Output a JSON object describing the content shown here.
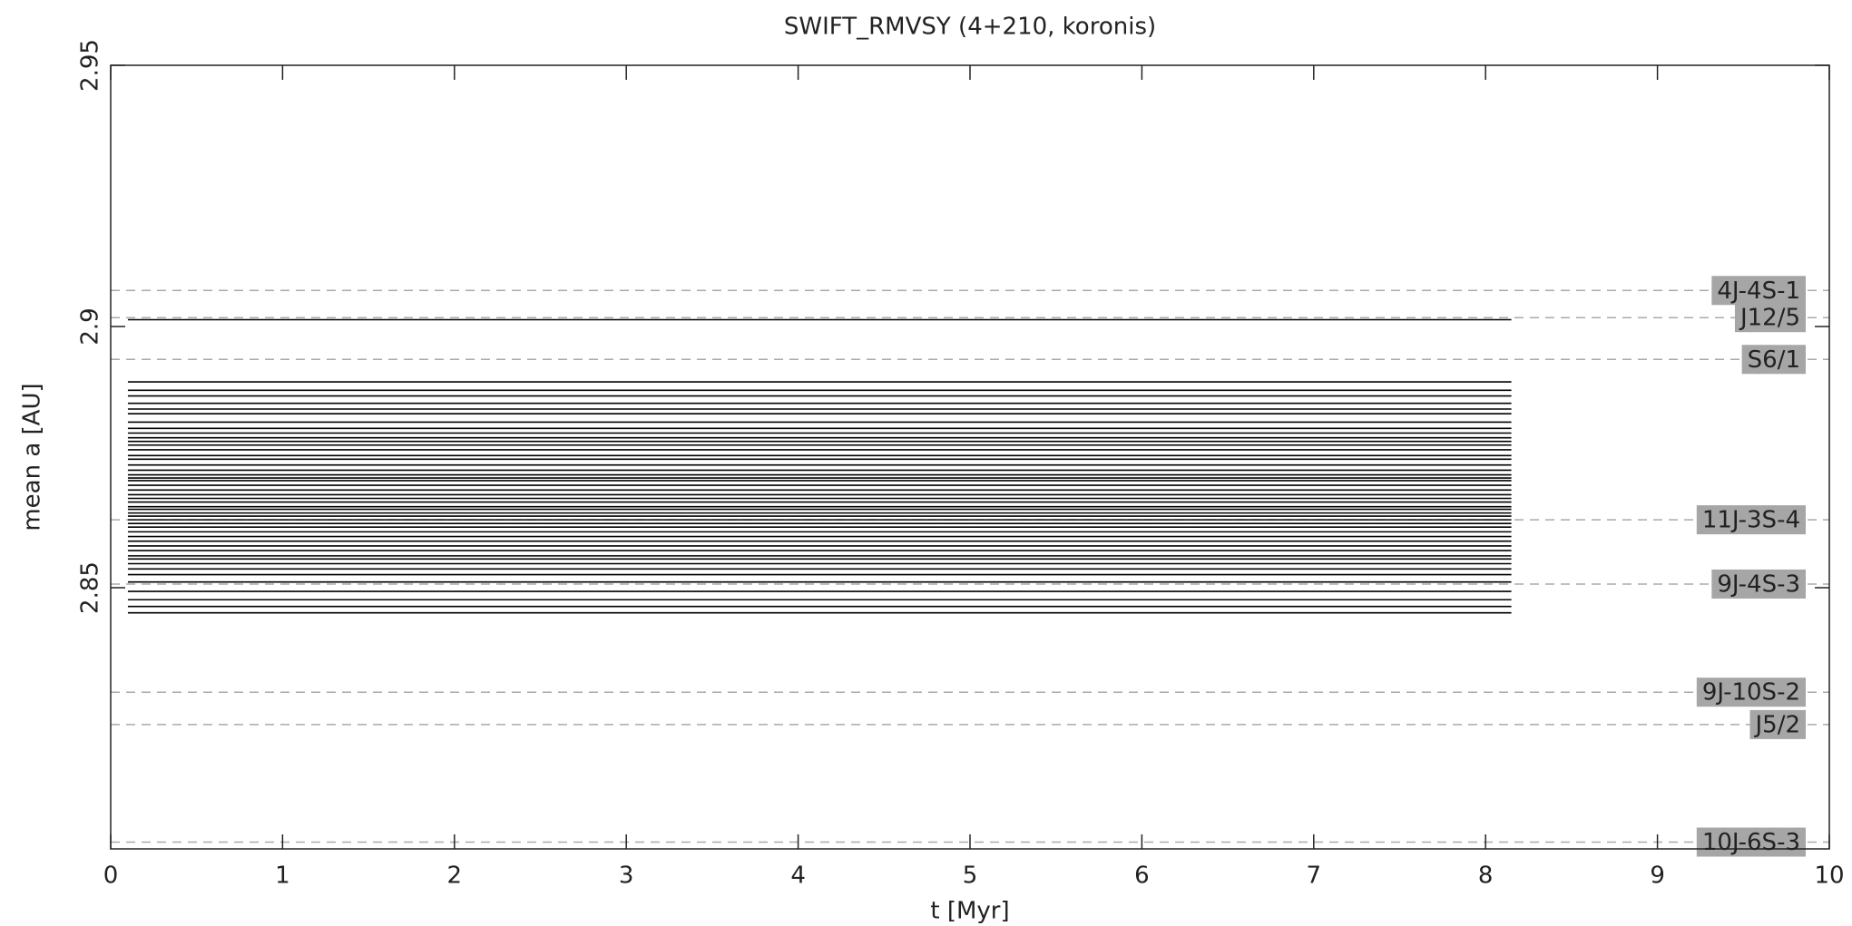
{
  "chart_data": {
    "type": "tracks",
    "title": "SWIFT_RMVSY (4+210, koronis)",
    "x_label": "t [Myr]",
    "y_label": "mean a [AU]",
    "xlim": [
      0,
      10
    ],
    "xticks": [
      0,
      1,
      2,
      3,
      4,
      5,
      6,
      7,
      8,
      9,
      10
    ],
    "ylim": [
      2.8,
      2.95
    ],
    "yticks": [
      2.85,
      2.9,
      2.95
    ],
    "tracks": {
      "color": "#000000",
      "x": [
        0.1,
        8.15
      ],
      "a": [
        2.9013,
        2.8894,
        2.8878,
        2.8867,
        2.8853,
        2.8842,
        2.8833,
        2.8817,
        2.8805,
        2.8796,
        2.8787,
        2.878,
        2.8773,
        2.8764,
        2.8753,
        2.8746,
        2.8735,
        2.8725,
        2.8716,
        2.871,
        2.8705,
        2.8696,
        2.8687,
        2.8678,
        2.8671,
        2.8664,
        2.8655,
        2.865,
        2.8643,
        2.8637,
        2.863,
        2.8623,
        2.8616,
        2.8607,
        2.8598,
        2.8589,
        2.858,
        2.8571,
        2.8561,
        2.8555,
        2.8546,
        2.8536,
        2.8525,
        2.8511,
        2.8493,
        2.8477,
        2.8464,
        2.8452
      ]
    },
    "resonances": {
      "color": "#aaaaaa",
      "label_box_color": "#a6a6a6",
      "names": [
        "4J-4S-1",
        "J12/5",
        "S6/1",
        "11J-3S-4",
        "9J-4S-3",
        "9J-10S-2",
        "J5/2",
        "10J-6S-3"
      ],
      "a": [
        2.9069,
        2.9017,
        2.8937,
        2.863,
        2.8507,
        2.83,
        2.8238,
        2.8013
      ]
    }
  }
}
